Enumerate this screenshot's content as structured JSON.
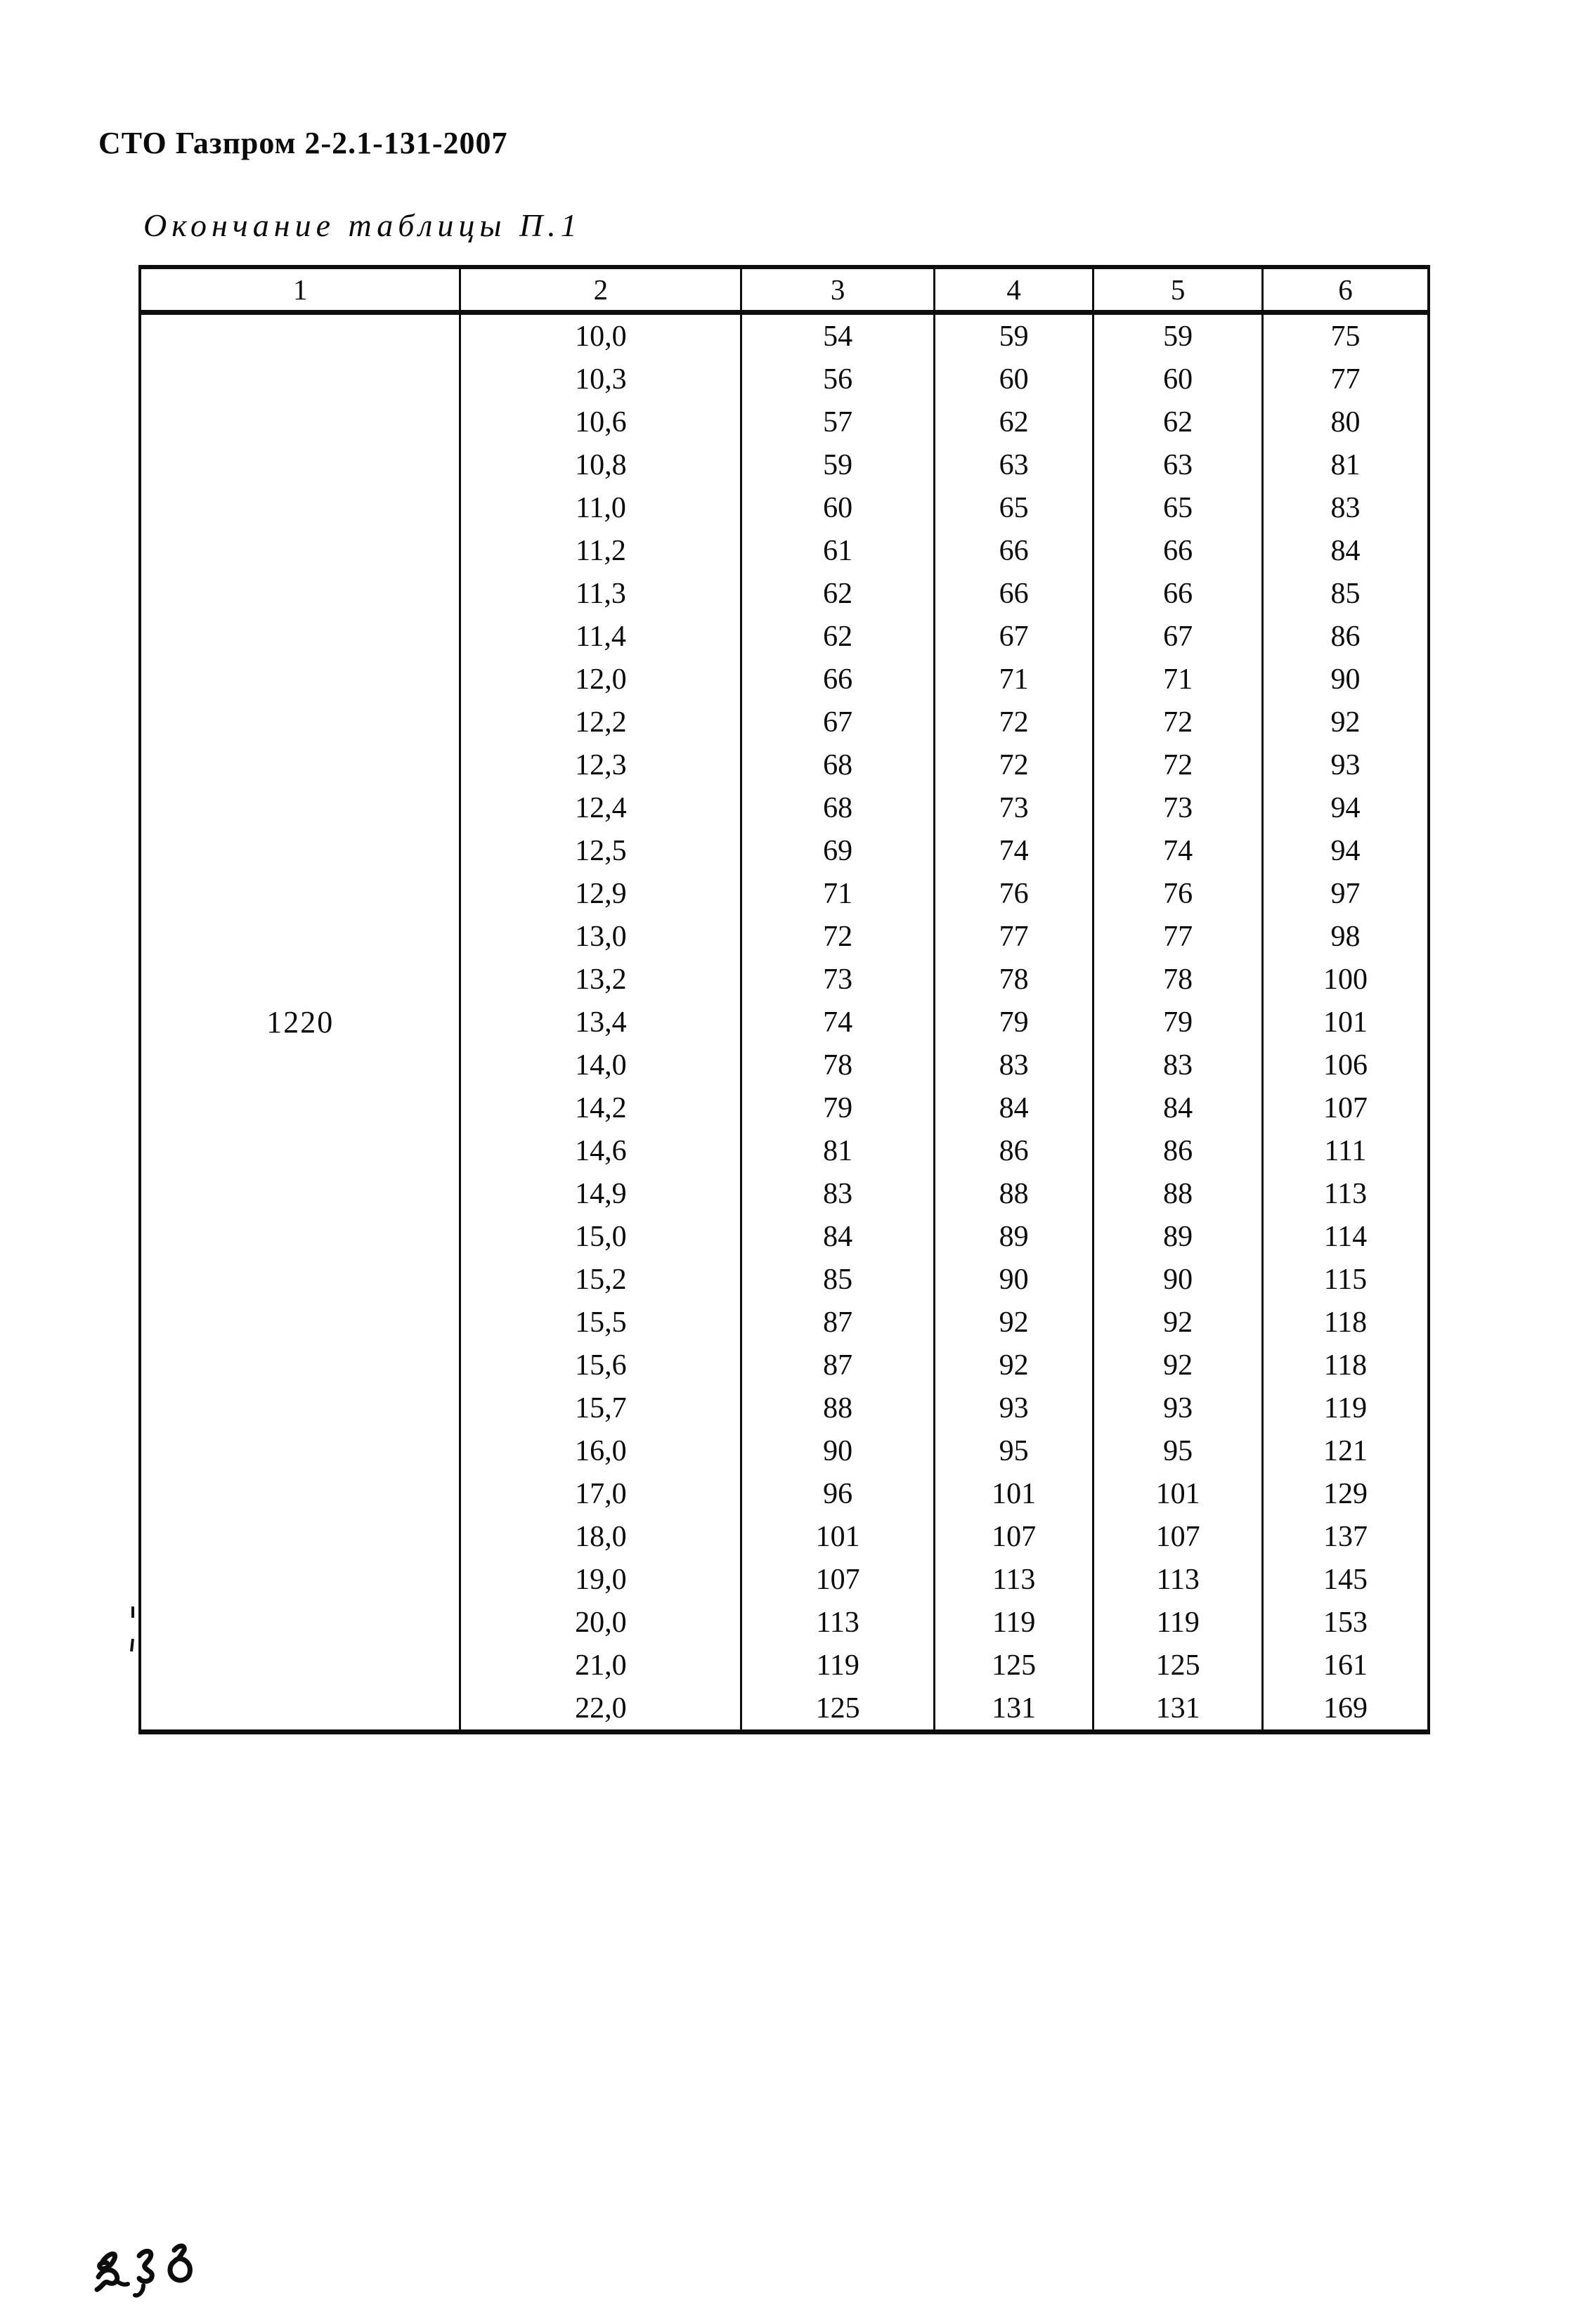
{
  "page": {
    "doc_code": "СТО Газпром 2-2.1-131-2007",
    "table_caption": "Окончание таблицы П.1"
  },
  "table": {
    "headers": [
      "1",
      "2",
      "3",
      "4",
      "5",
      "6"
    ],
    "col1_value": "1220",
    "rows": [
      [
        "10,0",
        "54",
        "59",
        "59",
        "75"
      ],
      [
        "10,3",
        "56",
        "60",
        "60",
        "77"
      ],
      [
        "10,6",
        "57",
        "62",
        "62",
        "80"
      ],
      [
        "10,8",
        "59",
        "63",
        "63",
        "81"
      ],
      [
        "11,0",
        "60",
        "65",
        "65",
        "83"
      ],
      [
        "11,2",
        "61",
        "66",
        "66",
        "84"
      ],
      [
        "11,3",
        "62",
        "66",
        "66",
        "85"
      ],
      [
        "11,4",
        "62",
        "67",
        "67",
        "86"
      ],
      [
        "12,0",
        "66",
        "71",
        "71",
        "90"
      ],
      [
        "12,2",
        "67",
        "72",
        "72",
        "92"
      ],
      [
        "12,3",
        "68",
        "72",
        "72",
        "93"
      ],
      [
        "12,4",
        "68",
        "73",
        "73",
        "94"
      ],
      [
        "12,5",
        "69",
        "74",
        "74",
        "94"
      ],
      [
        "12,9",
        "71",
        "76",
        "76",
        "97"
      ],
      [
        "13,0",
        "72",
        "77",
        "77",
        "98"
      ],
      [
        "13,2",
        "73",
        "78",
        "78",
        "100"
      ],
      [
        "13,4",
        "74",
        "79",
        "79",
        "101"
      ],
      [
        "14,0",
        "78",
        "83",
        "83",
        "106"
      ],
      [
        "14,2",
        "79",
        "84",
        "84",
        "107"
      ],
      [
        "14,6",
        "81",
        "86",
        "86",
        "111"
      ],
      [
        "14,9",
        "83",
        "88",
        "88",
        "113"
      ],
      [
        "15,0",
        "84",
        "89",
        "89",
        "114"
      ],
      [
        "15,2",
        "85",
        "90",
        "90",
        "115"
      ],
      [
        "15,5",
        "87",
        "92",
        "92",
        "118"
      ],
      [
        "15,6",
        "87",
        "92",
        "92",
        "118"
      ],
      [
        "15,7",
        "88",
        "93",
        "93",
        "119"
      ],
      [
        "16,0",
        "90",
        "95",
        "95",
        "121"
      ],
      [
        "17,0",
        "96",
        "101",
        "101",
        "129"
      ],
      [
        "18,0",
        "101",
        "107",
        "107",
        "137"
      ],
      [
        "19,0",
        "107",
        "113",
        "113",
        "145"
      ],
      [
        "20,0",
        "113",
        "119",
        "119",
        "153"
      ],
      [
        "21,0",
        "119",
        "125",
        "125",
        "161"
      ],
      [
        "22,0",
        "125",
        "131",
        "131",
        "169"
      ]
    ]
  }
}
